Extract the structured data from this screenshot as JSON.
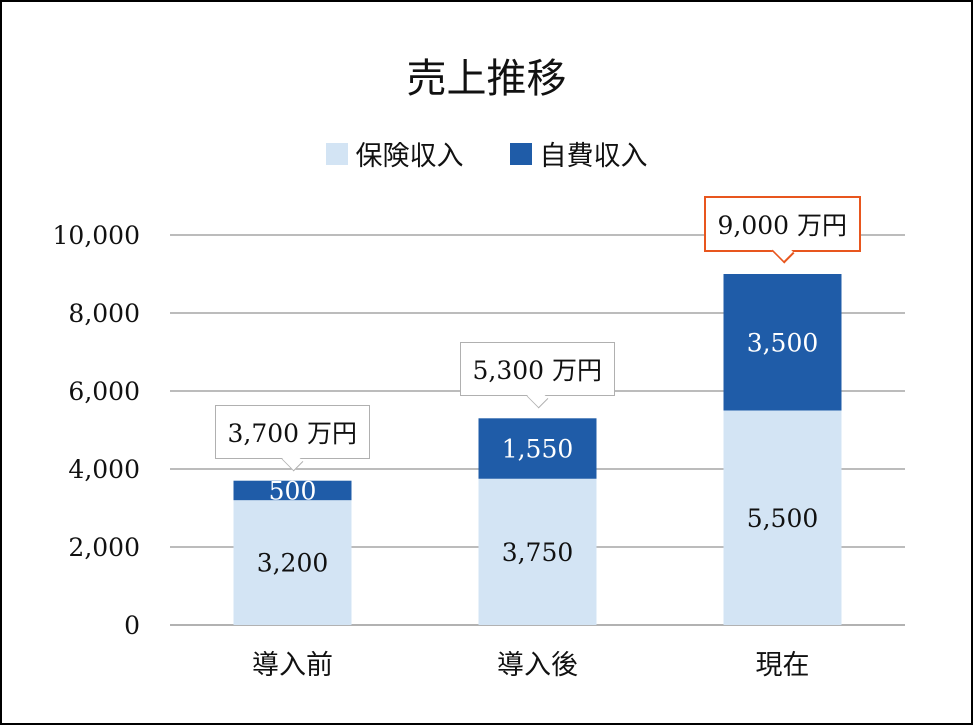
{
  "chart_data": {
    "type": "bar",
    "stacked": true,
    "title": "売上推移",
    "categories": [
      "導入前",
      "導入後",
      "現在"
    ],
    "series": [
      {
        "name": "保険収入",
        "values": [
          3200,
          3750,
          5500
        ],
        "color": "#d3e4f4",
        "label_color": "#111111"
      },
      {
        "name": "自費収入",
        "values": [
          500,
          1550,
          3500
        ],
        "color": "#1f5ca8",
        "label_color": "#ffffff"
      }
    ],
    "value_labels": [
      [
        "3,200",
        "3,750",
        "5,500"
      ],
      [
        "500",
        "1,550",
        "3,500"
      ]
    ],
    "totals": [
      "3,700 万円",
      "5,300 万円",
      "9,000 万円"
    ],
    "highlight_total_index": 2,
    "highlight_color": "#e8561e",
    "ylim": [
      0,
      10000
    ],
    "yticks": [
      0,
      2000,
      4000,
      6000,
      8000,
      10000
    ],
    "ytick_labels": [
      "0",
      "2,000",
      "4,000",
      "6,000",
      "8,000",
      "10,000"
    ],
    "grid": true,
    "legend": "top-center",
    "xlabel": "",
    "ylabel": ""
  }
}
